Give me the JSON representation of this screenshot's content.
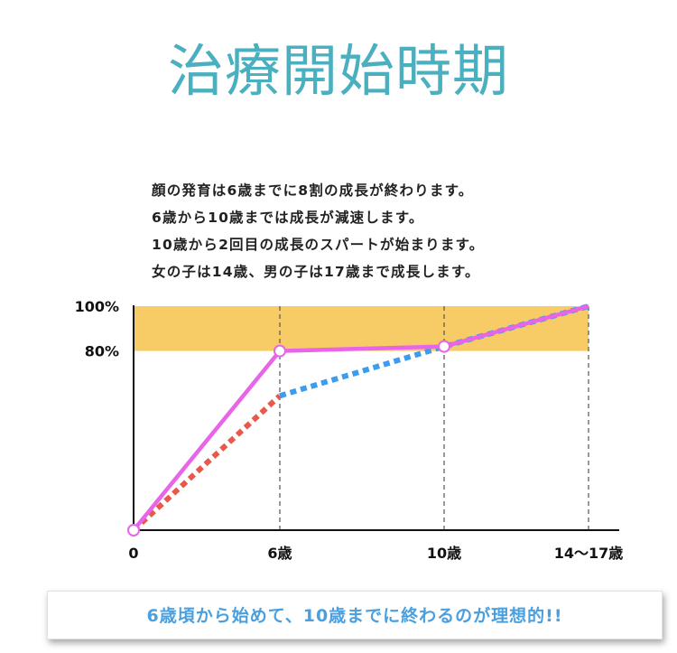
{
  "title": "治療開始時期",
  "description": [
    "顔の発育は6歳までに8割の成長が終わります。",
    "6歳から10歳までは成長が減速します。",
    "10歳から2回目の成長のスパートが始まります。",
    "女の子は14歳、男の子は17歳まで成長します。"
  ],
  "chart_data": {
    "type": "line",
    "y_tick_labels": [
      "100%",
      "80%"
    ],
    "x_tick_labels": [
      "0",
      "6歳",
      "10歳",
      "14〜17歳"
    ],
    "x": [
      0,
      6,
      10,
      14
    ],
    "ylim": [
      0,
      100
    ],
    "band": {
      "from": 80,
      "to": 100,
      "color": "#f7cb66"
    },
    "series": [
      {
        "style": "solid",
        "color": "#e865e8",
        "points": [
          [
            0,
            0
          ],
          [
            6,
            80
          ],
          [
            10,
            82
          ],
          [
            14,
            100
          ]
        ]
      },
      {
        "style": "dotted",
        "color": "#e8594a",
        "points": [
          [
            0,
            0
          ],
          [
            6,
            60
          ]
        ]
      },
      {
        "style": "dotted",
        "color": "#3b9cf0",
        "points": [
          [
            6,
            60
          ],
          [
            10,
            82
          ],
          [
            14,
            100
          ]
        ]
      }
    ],
    "markers": [
      [
        0,
        0
      ],
      [
        6,
        80
      ],
      [
        10,
        82
      ]
    ],
    "grid": "vertical dashed lines at 6, 10, 14"
  },
  "banner": "6歳頃から始めて、10歳までに終わるのが理想的!!"
}
